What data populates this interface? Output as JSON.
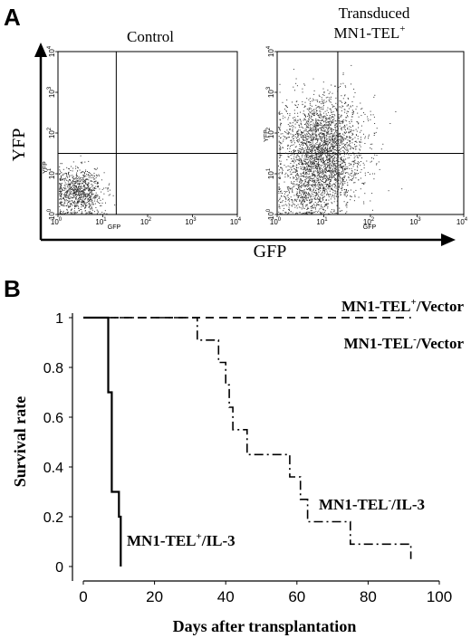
{
  "panel_a": {
    "label": "A",
    "axis_y": "YFP",
    "axis_x": "GFP",
    "plots": [
      {
        "title_lines": [
          "Control"
        ],
        "x_axis_label": "GFP",
        "y_axis_label": "YFP",
        "x_ticks": [
          "10",
          "10",
          "10",
          "10",
          "10"
        ],
        "x_tick_exps": [
          "0",
          "1",
          "2",
          "3",
          "4"
        ],
        "y_ticks": [
          "10",
          "10",
          "10",
          "10",
          "10"
        ],
        "y_tick_exps": [
          "0",
          "1",
          "2",
          "3",
          "4"
        ],
        "gate": {
          "x_log": 1.3,
          "y_log": 1.5
        }
      },
      {
        "title_lines": [
          "Transduced",
          "MN1-TEL"
        ],
        "title_superscript": "+",
        "x_axis_label": "GFP",
        "y_axis_label": "YFP",
        "x_ticks": [
          "10",
          "10",
          "10",
          "10",
          "10"
        ],
        "x_tick_exps": [
          "0",
          "1",
          "2",
          "3",
          "4"
        ],
        "y_ticks": [
          "10",
          "10",
          "10",
          "10",
          "10"
        ],
        "y_tick_exps": [
          "0",
          "1",
          "2",
          "3",
          "4"
        ],
        "gate": {
          "x_log": 1.3,
          "y_log": 1.5
        }
      }
    ]
  },
  "panel_b": {
    "label": "B"
  },
  "chart_data": {
    "type": "line",
    "subtype": "kaplan-meier",
    "title": "",
    "xlabel": "Days after transplantation",
    "ylabel": "Survival rate",
    "xlim": [
      0,
      100
    ],
    "ylim": [
      0,
      1
    ],
    "x_ticks": [
      0,
      20,
      40,
      60,
      80,
      100
    ],
    "y_ticks": [
      0,
      0.2,
      0.4,
      0.6,
      0.8,
      1
    ],
    "y_tick_labels": [
      "0",
      "0.2",
      "0.4",
      "0.6",
      "0.8",
      "1"
    ],
    "grid": false,
    "series": [
      {
        "name": "MN1-TEL+/Vector",
        "label_main": "MN1-TEL",
        "label_sup": "+",
        "label_rest": "/Vector",
        "style": "dash",
        "x": [
          0,
          92
        ],
        "y": [
          1,
          1
        ]
      },
      {
        "name": "MN1-TEL-/Vector",
        "label_main": "MN1-TEL",
        "label_sup": "-",
        "label_rest": "/Vector",
        "style": "dash",
        "x": [
          0,
          92
        ],
        "y": [
          1,
          1
        ]
      },
      {
        "name": "MN1-TEL-/IL-3",
        "label_main": "MN1-TEL",
        "label_sup": "-",
        "label_rest": "/IL-3",
        "style": "dashdot",
        "x": [
          0,
          32,
          38,
          40,
          41,
          42,
          46,
          58,
          61,
          63,
          66,
          75,
          92
        ],
        "y": [
          1,
          0.91,
          0.82,
          0.73,
          0.64,
          0.55,
          0.45,
          0.36,
          0.27,
          0.18,
          0.18,
          0.09,
          0.03
        ]
      },
      {
        "name": "MN1-TEL+/IL-3",
        "label_main": "MN1-TEL",
        "label_sup": "+",
        "label_rest": "/IL-3",
        "style": "solid",
        "x": [
          0,
          7,
          8,
          10,
          10.5
        ],
        "y": [
          1,
          0.7,
          0.3,
          0.2,
          0
        ]
      }
    ]
  }
}
